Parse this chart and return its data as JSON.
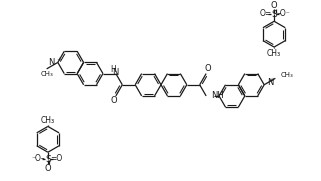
{
  "bg": "#ffffff",
  "fg": "#1a1a1a",
  "lw": 0.9,
  "figsize": [
    3.21,
    1.81
  ],
  "dpi": 100,
  "xlim": [
    0,
    321
  ],
  "ylim": [
    0,
    181
  ],
  "r6": 13,
  "bl": 13
}
